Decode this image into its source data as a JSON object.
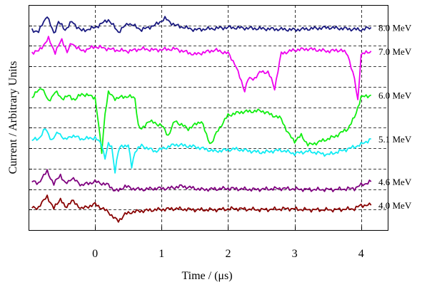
{
  "chart_data": {
    "type": "line",
    "xlabel": "Time / (μs)",
    "ylabel": "Current / Arbitrary Units",
    "xlim": [
      -1.0,
      4.4
    ],
    "xticks": [
      "0",
      "1",
      "2",
      "3",
      "4"
    ],
    "xtick_values": [
      0,
      1,
      2,
      3,
      4
    ],
    "y_ticks_labeled": false,
    "grid": "dashed",
    "series_labels_placement": "right edge",
    "series": [
      {
        "name": "8.0 MeV",
        "color": "#1a1a80",
        "x": [
          -0.95,
          -0.85,
          -0.72,
          -0.62,
          -0.55,
          -0.45,
          -0.35,
          -0.2,
          0.0,
          0.2,
          0.35,
          0.5,
          0.7,
          0.9,
          1.05,
          1.2,
          1.5,
          2.0,
          2.5,
          3.0,
          3.5,
          4.0,
          4.15
        ],
        "y": [
          7.9,
          7.8,
          8.55,
          7.7,
          8.25,
          7.9,
          8.25,
          7.85,
          8.0,
          8.35,
          7.8,
          8.2,
          7.9,
          8.1,
          8.4,
          8.1,
          7.9,
          8.0,
          7.95,
          7.9,
          8.0,
          7.9,
          8.0
        ]
      },
      {
        "name": "7.0 MeV",
        "color": "#ee00ee",
        "x": [
          -0.95,
          -0.85,
          -0.7,
          -0.6,
          -0.5,
          -0.42,
          -0.35,
          -0.2,
          0.0,
          0.3,
          0.5,
          0.7,
          0.9,
          1.2,
          1.5,
          1.8,
          2.0,
          2.1,
          2.2,
          2.25,
          2.3,
          2.4,
          2.5,
          2.6,
          2.65,
          2.7,
          2.8,
          3.0,
          3.2,
          3.5,
          3.7,
          3.8,
          3.9,
          3.95,
          4.0,
          4.15
        ],
        "y": [
          6.9,
          6.95,
          7.5,
          6.9,
          7.45,
          6.95,
          7.3,
          6.95,
          7.15,
          7.0,
          6.95,
          7.05,
          7.0,
          7.05,
          6.8,
          7.0,
          6.85,
          6.4,
          5.6,
          5.2,
          5.7,
          5.75,
          6.05,
          6.0,
          5.7,
          5.3,
          6.85,
          7.0,
          7.05,
          6.95,
          7.0,
          6.8,
          5.7,
          4.75,
          6.8,
          6.95
        ]
      },
      {
        "name": "6.0 MeV",
        "color": "#11ee11",
        "x": [
          -0.95,
          -0.8,
          -0.7,
          -0.6,
          -0.5,
          -0.4,
          -0.3,
          -0.2,
          0.0,
          0.05,
          0.1,
          0.15,
          0.2,
          0.3,
          0.5,
          0.6,
          0.65,
          0.7,
          0.8,
          1.0,
          1.1,
          1.2,
          1.4,
          1.6,
          1.7,
          1.75,
          1.85,
          2.0,
          2.2,
          2.5,
          2.8,
          2.9,
          3.0,
          3.1,
          3.2,
          3.25,
          3.35,
          3.6,
          3.8,
          3.9,
          4.0,
          4.15
        ],
        "y": [
          4.9,
          5.35,
          4.7,
          5.15,
          4.85,
          4.95,
          4.8,
          5.05,
          4.9,
          3.75,
          2.45,
          4.2,
          5.1,
          4.85,
          4.95,
          4.85,
          3.65,
          3.45,
          3.85,
          3.65,
          3.2,
          3.85,
          3.5,
          3.85,
          3.0,
          2.85,
          3.45,
          4.1,
          4.25,
          4.3,
          3.95,
          3.3,
          2.95,
          3.2,
          2.8,
          2.8,
          2.9,
          3.15,
          3.5,
          4.0,
          4.9,
          5.0
        ]
      },
      {
        "name": "5.1 MeV",
        "color": "#11ecf4",
        "x": [
          -0.95,
          -0.85,
          -0.75,
          -0.65,
          -0.55,
          -0.45,
          -0.35,
          -0.2,
          0.0,
          0.1,
          0.15,
          0.2,
          0.25,
          0.3,
          0.35,
          0.4,
          0.5,
          0.55,
          0.6,
          0.7,
          0.9,
          1.2,
          1.5,
          1.8,
          2.1,
          2.5,
          2.8,
          3.0,
          3.2,
          3.5,
          3.8,
          4.0,
          4.15
        ],
        "y": [
          3.0,
          3.05,
          3.5,
          3.0,
          3.35,
          3.0,
          3.2,
          3.05,
          3.1,
          2.8,
          2.2,
          2.8,
          2.7,
          1.6,
          2.5,
          2.75,
          2.75,
          1.8,
          2.5,
          2.75,
          2.5,
          2.8,
          2.7,
          2.5,
          2.6,
          2.45,
          2.55,
          2.4,
          2.5,
          2.35,
          2.6,
          2.8,
          3.05
        ]
      },
      {
        "name": "4.6 MeV",
        "color": "#7f007f",
        "x": [
          -0.95,
          -0.85,
          -0.72,
          -0.62,
          -0.52,
          -0.45,
          -0.35,
          -0.2,
          0.0,
          0.2,
          0.3,
          0.35,
          0.45,
          0.55,
          0.7,
          0.9,
          1.1,
          1.3,
          1.6,
          2.0,
          2.4,
          2.8,
          3.2,
          3.6,
          3.9,
          4.0,
          4.15
        ],
        "y": [
          1.15,
          1.1,
          1.6,
          1.05,
          1.45,
          1.05,
          1.3,
          1.0,
          1.15,
          1.0,
          0.75,
          0.75,
          0.95,
          0.85,
          0.8,
          0.85,
          0.85,
          0.95,
          0.8,
          0.85,
          0.8,
          0.85,
          0.8,
          0.8,
          0.85,
          1.0,
          1.15
        ]
      },
      {
        "name": "4.0 MeV",
        "color": "#880000",
        "x": [
          -0.95,
          -0.85,
          -0.72,
          -0.62,
          -0.52,
          -0.45,
          -0.35,
          -0.2,
          0.0,
          0.2,
          0.3,
          0.35,
          0.45,
          0.55,
          0.7,
          0.9,
          1.2,
          1.5,
          1.8,
          2.1,
          2.5,
          2.9,
          3.2,
          3.6,
          3.9,
          4.0,
          4.15
        ],
        "y": [
          0.0,
          0.0,
          0.5,
          -0.05,
          0.4,
          0.0,
          0.3,
          -0.05,
          0.15,
          -0.2,
          -0.5,
          -0.6,
          -0.3,
          -0.2,
          -0.15,
          -0.1,
          -0.05,
          -0.1,
          -0.1,
          -0.05,
          -0.1,
          -0.05,
          -0.1,
          -0.1,
          -0.05,
          0.1,
          0.1
        ]
      }
    ]
  }
}
